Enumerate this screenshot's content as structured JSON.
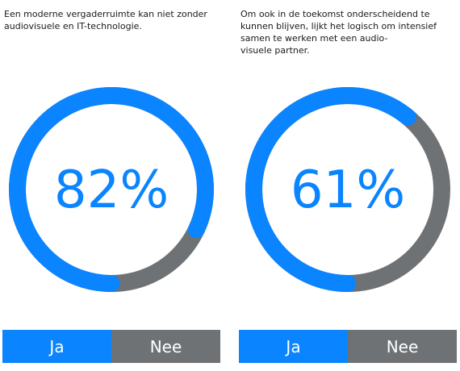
{
  "colors": {
    "ja": "#0a84ff",
    "nee": "#6e7275"
  },
  "legend": {
    "ja_label": "Ja",
    "nee_label": "Nee"
  },
  "panels": [
    {
      "question": "Een moderne vergaderruimte kan niet zonder\naudiovisuele en IT-technologie.",
      "percentage_label": "82%"
    },
    {
      "question": "Om ook in de toekomst onderscheidend te\nkunnen blijven, lijkt het logisch om intensief\nsamen te werken met een audio-\nvisuele partner.",
      "percentage_label": "61%"
    }
  ],
  "chart_data": [
    {
      "type": "pie",
      "categories": [
        "Ja",
        "Nee"
      ],
      "values": [
        82,
        18
      ],
      "center_label": "82%"
    },
    {
      "type": "pie",
      "categories": [
        "Ja",
        "Nee"
      ],
      "values": [
        61,
        39
      ],
      "center_label": "61%"
    }
  ]
}
